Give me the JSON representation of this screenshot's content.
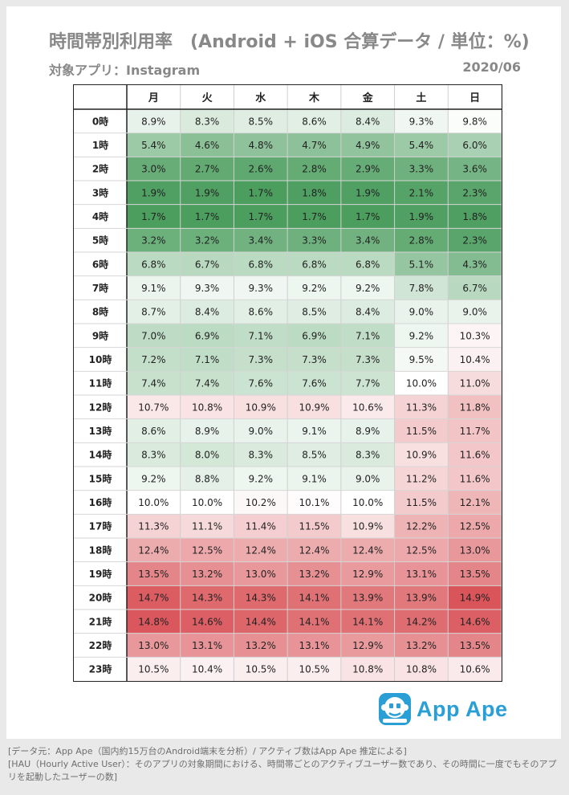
{
  "header": {
    "title": "時間帯別利用率　(Android + iOS 合算データ / 単位：%)",
    "subtitle": "対象アプリ：Instagram",
    "date": "2020/06"
  },
  "logo": {
    "name": "App Ape",
    "icon": "app-ape-monkey-icon",
    "color": "#2a9fd6"
  },
  "footer": {
    "line1": "[データ元：App Ape（国内約15万台のAndroid端末を分析）/ アクティブ数はApp Ape 推定による]",
    "line2": "[HAU（Hourly Active User）：そのアプリの対象期間における、時間帯ごとのアクティブユーザー数であり、その時間に一度でもそのアプリを起動したユーザーの数]"
  },
  "chart_data": {
    "type": "heatmap",
    "columns": [
      "月",
      "火",
      "水",
      "木",
      "金",
      "土",
      "日"
    ],
    "rows": [
      "0時",
      "1時",
      "2時",
      "3時",
      "4時",
      "5時",
      "6時",
      "7時",
      "8時",
      "9時",
      "10時",
      "11時",
      "12時",
      "13時",
      "14時",
      "15時",
      "16時",
      "17時",
      "18時",
      "19時",
      "20時",
      "21時",
      "22時",
      "23時"
    ],
    "values": [
      [
        8.9,
        8.3,
        8.5,
        8.6,
        8.4,
        9.3,
        9.8
      ],
      [
        5.4,
        4.6,
        4.8,
        4.7,
        4.9,
        5.4,
        6.0
      ],
      [
        3.0,
        2.7,
        2.6,
        2.8,
        2.9,
        3.3,
        3.6
      ],
      [
        1.9,
        1.9,
        1.7,
        1.8,
        1.9,
        2.1,
        2.3
      ],
      [
        1.7,
        1.7,
        1.7,
        1.7,
        1.7,
        1.9,
        1.8
      ],
      [
        3.2,
        3.2,
        3.4,
        3.3,
        3.4,
        2.8,
        2.3
      ],
      [
        6.8,
        6.7,
        6.8,
        6.8,
        6.8,
        5.1,
        4.3
      ],
      [
        9.1,
        9.3,
        9.3,
        9.2,
        9.2,
        7.8,
        6.7
      ],
      [
        8.7,
        8.4,
        8.6,
        8.5,
        8.4,
        9.0,
        9.0
      ],
      [
        7.0,
        6.9,
        7.1,
        6.9,
        7.1,
        9.2,
        10.3
      ],
      [
        7.2,
        7.1,
        7.3,
        7.3,
        7.3,
        9.5,
        10.4
      ],
      [
        7.4,
        7.4,
        7.6,
        7.6,
        7.7,
        10.0,
        11.0
      ],
      [
        10.7,
        10.8,
        10.9,
        10.9,
        10.6,
        11.3,
        11.8
      ],
      [
        8.6,
        8.9,
        9.0,
        9.1,
        8.9,
        11.5,
        11.7
      ],
      [
        8.3,
        8.0,
        8.3,
        8.5,
        8.3,
        10.9,
        11.6
      ],
      [
        9.2,
        8.8,
        9.2,
        9.1,
        9.0,
        11.2,
        11.6
      ],
      [
        10.0,
        10.0,
        10.2,
        10.1,
        10.0,
        11.5,
        12.1
      ],
      [
        11.3,
        11.1,
        11.4,
        11.5,
        10.9,
        12.2,
        12.5
      ],
      [
        12.4,
        12.5,
        12.4,
        12.4,
        12.4,
        12.5,
        13.0
      ],
      [
        13.5,
        13.2,
        13.0,
        13.2,
        12.9,
        13.1,
        13.5
      ],
      [
        14.7,
        14.3,
        14.3,
        14.1,
        13.9,
        13.9,
        14.9
      ],
      [
        14.8,
        14.6,
        14.4,
        14.1,
        14.1,
        14.2,
        14.6
      ],
      [
        13.0,
        13.1,
        13.2,
        13.1,
        12.9,
        13.2,
        13.5
      ],
      [
        10.5,
        10.4,
        10.5,
        10.5,
        10.8,
        10.8,
        10.6
      ]
    ],
    "unit": "%",
    "color_low": "#4c9e5f",
    "color_mid": "#ffffff",
    "color_high": "#d9555a",
    "grid": true
  }
}
